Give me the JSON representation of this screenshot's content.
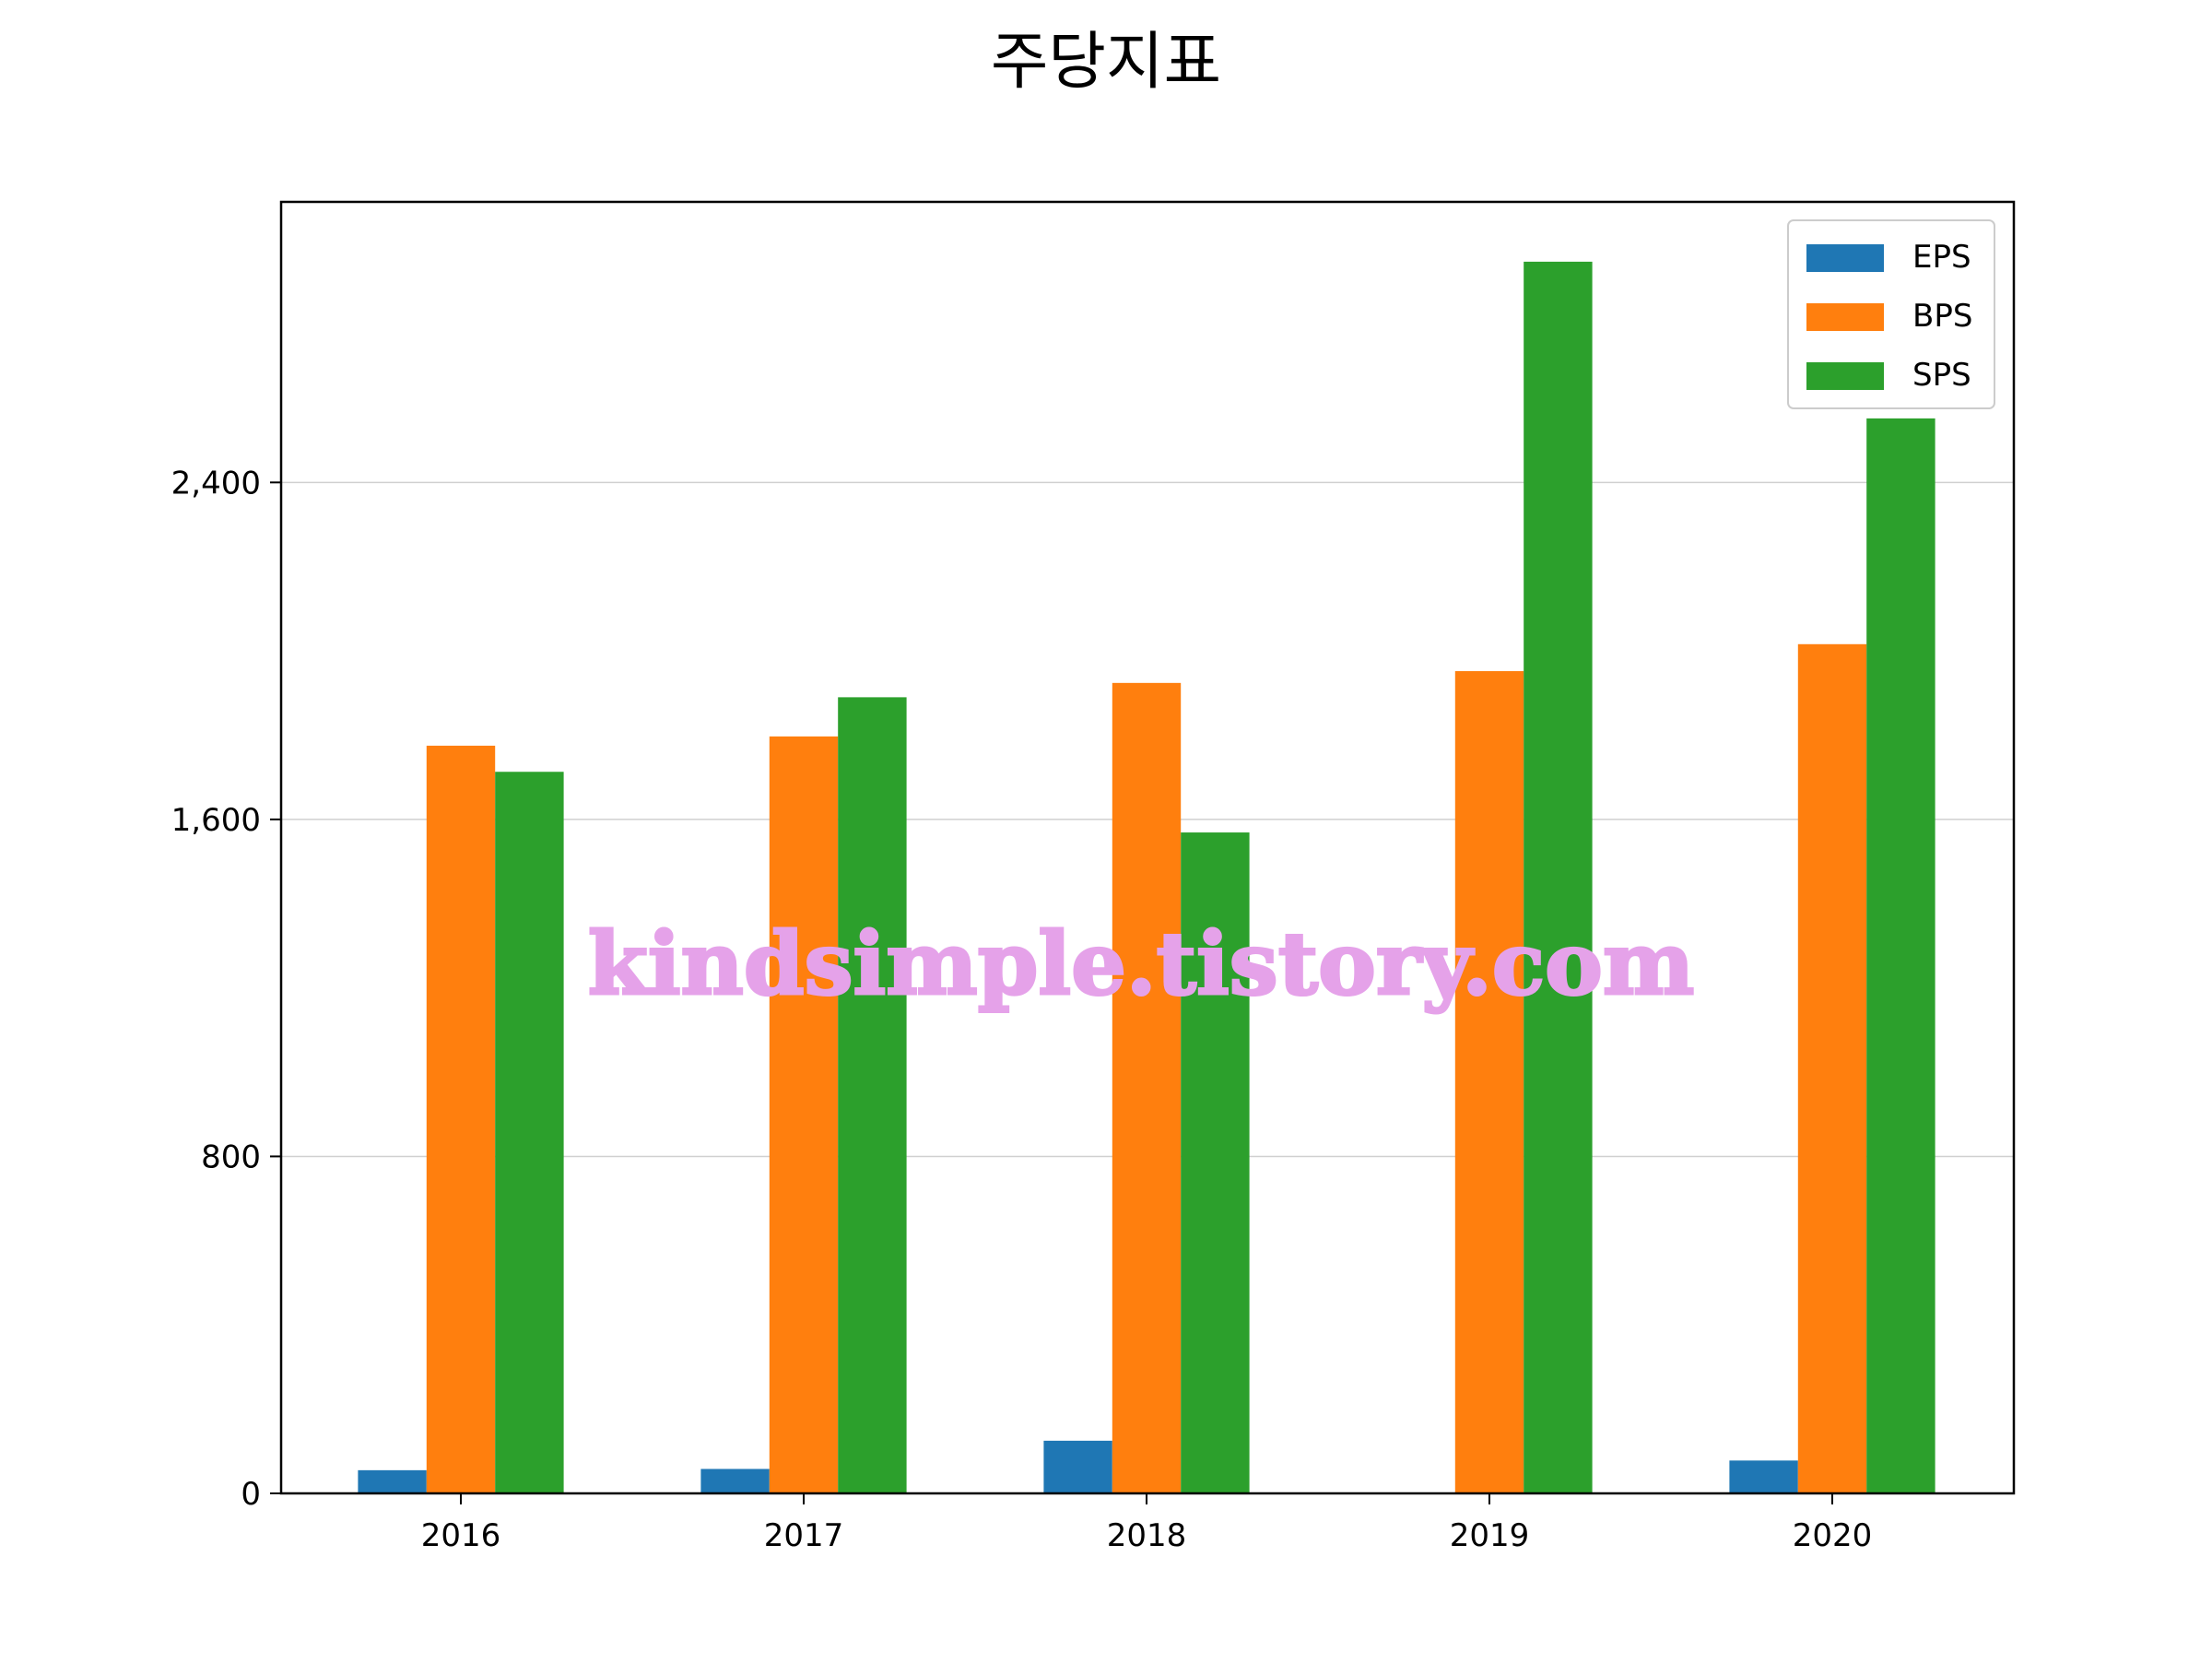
{
  "chart_data": {
    "type": "bar",
    "title": "주당지표",
    "xlabel": "",
    "ylabel": "",
    "categories": [
      "2016",
      "2017",
      "2018",
      "2019",
      "2020"
    ],
    "series": [
      {
        "name": "EPS",
        "color": "#1f77b4",
        "values": [
          55,
          58,
          125,
          0,
          78
        ]
      },
      {
        "name": "BPS",
        "color": "#ff7f0e",
        "values": [
          1775,
          1797,
          1924,
          1952,
          2016
        ]
      },
      {
        "name": "SPS",
        "color": "#2ca02c",
        "values": [
          1713,
          1890,
          1569,
          2924,
          2552
        ]
      }
    ],
    "ylim": [
      0,
      3066
    ],
    "yticks": [
      0,
      800,
      1600,
      2400
    ],
    "ytick_labels": [
      "0",
      "800",
      "1,600",
      "2,400"
    ],
    "grid": "y",
    "legend_position": "top-right",
    "watermark": "kindsimple.tistory.com"
  }
}
